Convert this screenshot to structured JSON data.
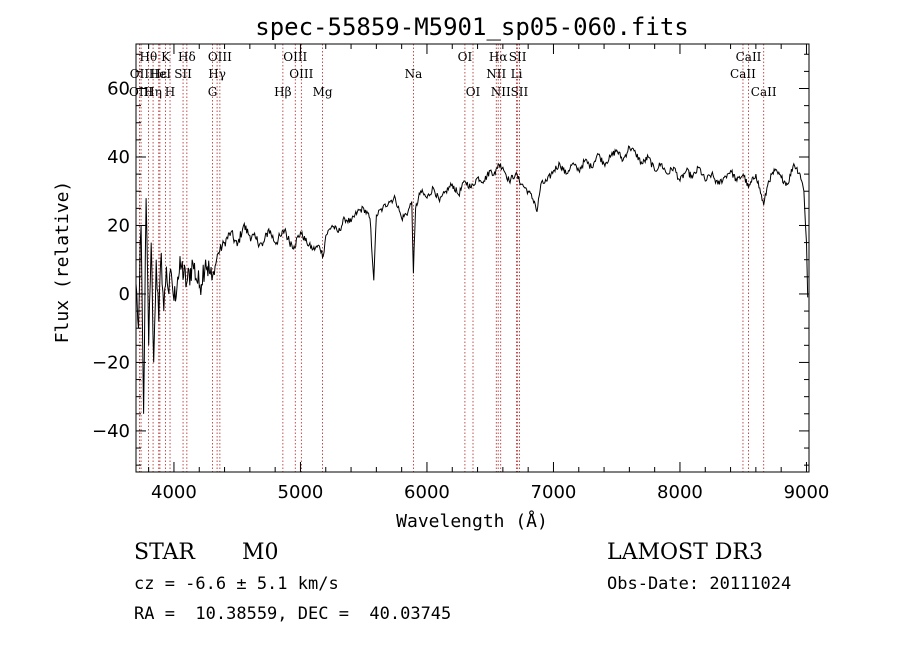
{
  "chart_data": {
    "type": "line",
    "title": "spec-55859-M5901_sp05-060.fits",
    "xlabel": "Wavelength (Å)",
    "ylabel": "Flux (relative)",
    "xlim": [
      3700,
      9020
    ],
    "ylim": [
      -52,
      73
    ],
    "xticks": [
      4000,
      5000,
      6000,
      7000,
      8000,
      9000
    ],
    "yticks": [
      -40,
      -20,
      0,
      20,
      40,
      60
    ],
    "line_color": "#000000",
    "marker_color": "#b22222",
    "series": [
      {
        "name": "flux",
        "x": [
          3700,
          3720,
          3740,
          3760,
          3780,
          3800,
          3820,
          3840,
          3860,
          3880,
          3900,
          3920,
          3940,
          3960,
          3980,
          4000,
          4030,
          4060,
          4100,
          4150,
          4200,
          4250,
          4300,
          4350,
          4400,
          4450,
          4500,
          4550,
          4600,
          4650,
          4700,
          4750,
          4800,
          4850,
          4880,
          4900,
          4950,
          5000,
          5050,
          5100,
          5150,
          5180,
          5200,
          5250,
          5300,
          5350,
          5400,
          5450,
          5500,
          5550,
          5580,
          5600,
          5650,
          5700,
          5750,
          5800,
          5850,
          5880,
          5893,
          5910,
          5950,
          6000,
          6050,
          6100,
          6150,
          6200,
          6250,
          6300,
          6350,
          6400,
          6450,
          6500,
          6540,
          6563,
          6600,
          6650,
          6700,
          6750,
          6800,
          6850,
          6870,
          6900,
          6950,
          7000,
          7050,
          7100,
          7150,
          7200,
          7250,
          7300,
          7350,
          7400,
          7450,
          7500,
          7550,
          7600,
          7650,
          7700,
          7750,
          7800,
          7850,
          7900,
          7950,
          8000,
          8050,
          8100,
          8150,
          8200,
          8250,
          8300,
          8350,
          8400,
          8450,
          8500,
          8542,
          8600,
          8662,
          8700,
          8750,
          8800,
          8850,
          8900,
          8950,
          8980,
          9000,
          9010
        ],
        "y": [
          3,
          -10,
          20,
          -35,
          28,
          -15,
          15,
          -20,
          10,
          -8,
          12,
          -5,
          8,
          0,
          6,
          -2,
          5,
          8,
          3,
          9,
          2,
          10,
          4,
          12,
          15,
          18,
          14,
          20,
          17,
          16,
          14,
          19,
          15,
          17,
          19,
          16,
          14,
          18,
          15,
          13,
          14,
          11,
          17,
          20,
          18,
          22,
          21,
          24,
          25,
          22,
          4,
          23,
          25,
          27,
          28,
          22,
          24,
          27,
          6,
          25,
          30,
          28,
          31,
          27,
          30,
          32,
          29,
          33,
          31,
          34,
          33,
          36,
          35,
          38,
          37,
          33,
          35,
          32,
          30,
          27,
          24,
          32,
          33,
          36,
          38,
          35,
          38,
          36,
          39,
          37,
          41,
          38,
          40,
          42,
          39,
          43,
          41,
          38,
          40,
          36,
          38,
          35,
          37,
          33,
          36,
          34,
          37,
          33,
          35,
          32,
          34,
          36,
          33,
          35,
          31,
          35,
          26,
          33,
          36,
          34,
          32,
          38,
          35,
          30,
          15,
          -1
        ]
      }
    ],
    "annotations": [
      {
        "label": "Hθ",
        "x": 3798,
        "row": 1
      },
      {
        "label": "OII",
        "x": 3727,
        "row": 2
      },
      {
        "label": "OIII",
        "x": 3740,
        "row": 3
      },
      {
        "label": "K",
        "x": 3934,
        "row": 1
      },
      {
        "label": "H",
        "x": 3969,
        "row": 3
      },
      {
        "label": "Hε",
        "x": 3880,
        "row": 2
      },
      {
        "label": "HeI",
        "x": 3889,
        "row": 2
      },
      {
        "label": "Hη",
        "x": 3835,
        "row": 3
      },
      {
        "label": "SII",
        "x": 4072,
        "row": 2
      },
      {
        "label": "Hδ",
        "x": 4102,
        "row": 1
      },
      {
        "label": "OIII",
        "x": 4363,
        "row": 1
      },
      {
        "label": "Hγ",
        "x": 4341,
        "row": 2
      },
      {
        "label": "G",
        "x": 4305,
        "row": 3
      },
      {
        "label": "OIII",
        "x": 4959,
        "row": 1
      },
      {
        "label": "OIII",
        "x": 5007,
        "row": 2
      },
      {
        "label": "Hβ",
        "x": 4861,
        "row": 3
      },
      {
        "label": "Mg",
        "x": 5175,
        "row": 3
      },
      {
        "label": "Na",
        "x": 5893,
        "row": 2
      },
      {
        "label": "OI",
        "x": 6300,
        "row": 1
      },
      {
        "label": "OI",
        "x": 6364,
        "row": 3
      },
      {
        "label": "Hα",
        "x": 6563,
        "row": 1
      },
      {
        "label": "NII",
        "x": 6548,
        "row": 2
      },
      {
        "label": "NII",
        "x": 6583,
        "row": 3
      },
      {
        "label": "SII",
        "x": 6717,
        "row": 1
      },
      {
        "label": "Li",
        "x": 6708,
        "row": 2
      },
      {
        "label": "SII",
        "x": 6731,
        "row": 3
      },
      {
        "label": "CaII",
        "x": 8542,
        "row": 1
      },
      {
        "label": "CaII",
        "x": 8498,
        "row": 2
      },
      {
        "label": "CaII",
        "x": 8662,
        "row": 3
      }
    ]
  },
  "info": {
    "object_class": "STAR",
    "subclass": "M0",
    "survey": "LAMOST DR3",
    "cz": "cz = -6.6 ± 5.1 km/s",
    "obs_date": "Obs-Date: 20111024",
    "coords": "RA =  10.38559, DEC =  40.03745"
  }
}
